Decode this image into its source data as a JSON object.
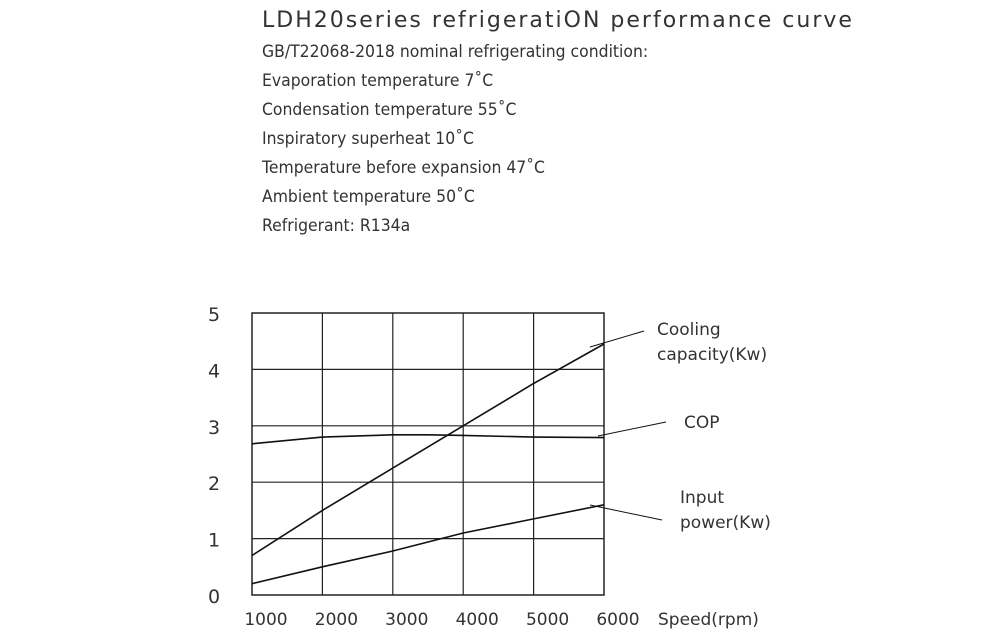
{
  "header": {
    "title": "LDH20series refrigeratiON performance curve",
    "lines": [
      "GB/T22068-2018 nominal refrigerating condition:",
      "Evaporation temperature 7˚C",
      "Condensation  temperature 55˚C",
      "Inspiratory superheat 10˚C",
      "Temperature before expansion 47˚C",
      "Ambient  temperature 50˚C",
      "Refrigerant: R134a"
    ]
  },
  "chart_data": {
    "type": "line",
    "xlabel": "Speed(rpm)",
    "ylabel": "",
    "xlim": [
      1000,
      6000
    ],
    "ylim": [
      0,
      5
    ],
    "x_ticks": [
      "1000",
      "2000",
      "3000",
      "4000",
      "5000",
      "6000"
    ],
    "y_ticks": [
      "0",
      "1",
      "2",
      "3",
      "4",
      "5"
    ],
    "grid": true,
    "legend": "callouts-right",
    "series": [
      {
        "name": "Cooling capacity(Kw)",
        "label_lines": [
          "Cooling",
          "capacity(Kw)"
        ],
        "x": [
          1000,
          2000,
          3000,
          4000,
          5000,
          6000
        ],
        "y": [
          0.7,
          1.5,
          2.25,
          3.0,
          3.75,
          4.45
        ]
      },
      {
        "name": "COP",
        "label_lines": [
          "COP"
        ],
        "x": [
          1000,
          2000,
          3000,
          3500,
          4000,
          5000,
          6000
        ],
        "y": [
          2.68,
          2.8,
          2.84,
          2.84,
          2.83,
          2.8,
          2.79
        ]
      },
      {
        "name": "Input power(Kw)",
        "label_lines": [
          "Input",
          "power(Kw)"
        ],
        "x": [
          1000,
          2000,
          3000,
          4000,
          5000,
          6000
        ],
        "y": [
          0.2,
          0.5,
          0.78,
          1.1,
          1.35,
          1.6
        ]
      }
    ]
  }
}
